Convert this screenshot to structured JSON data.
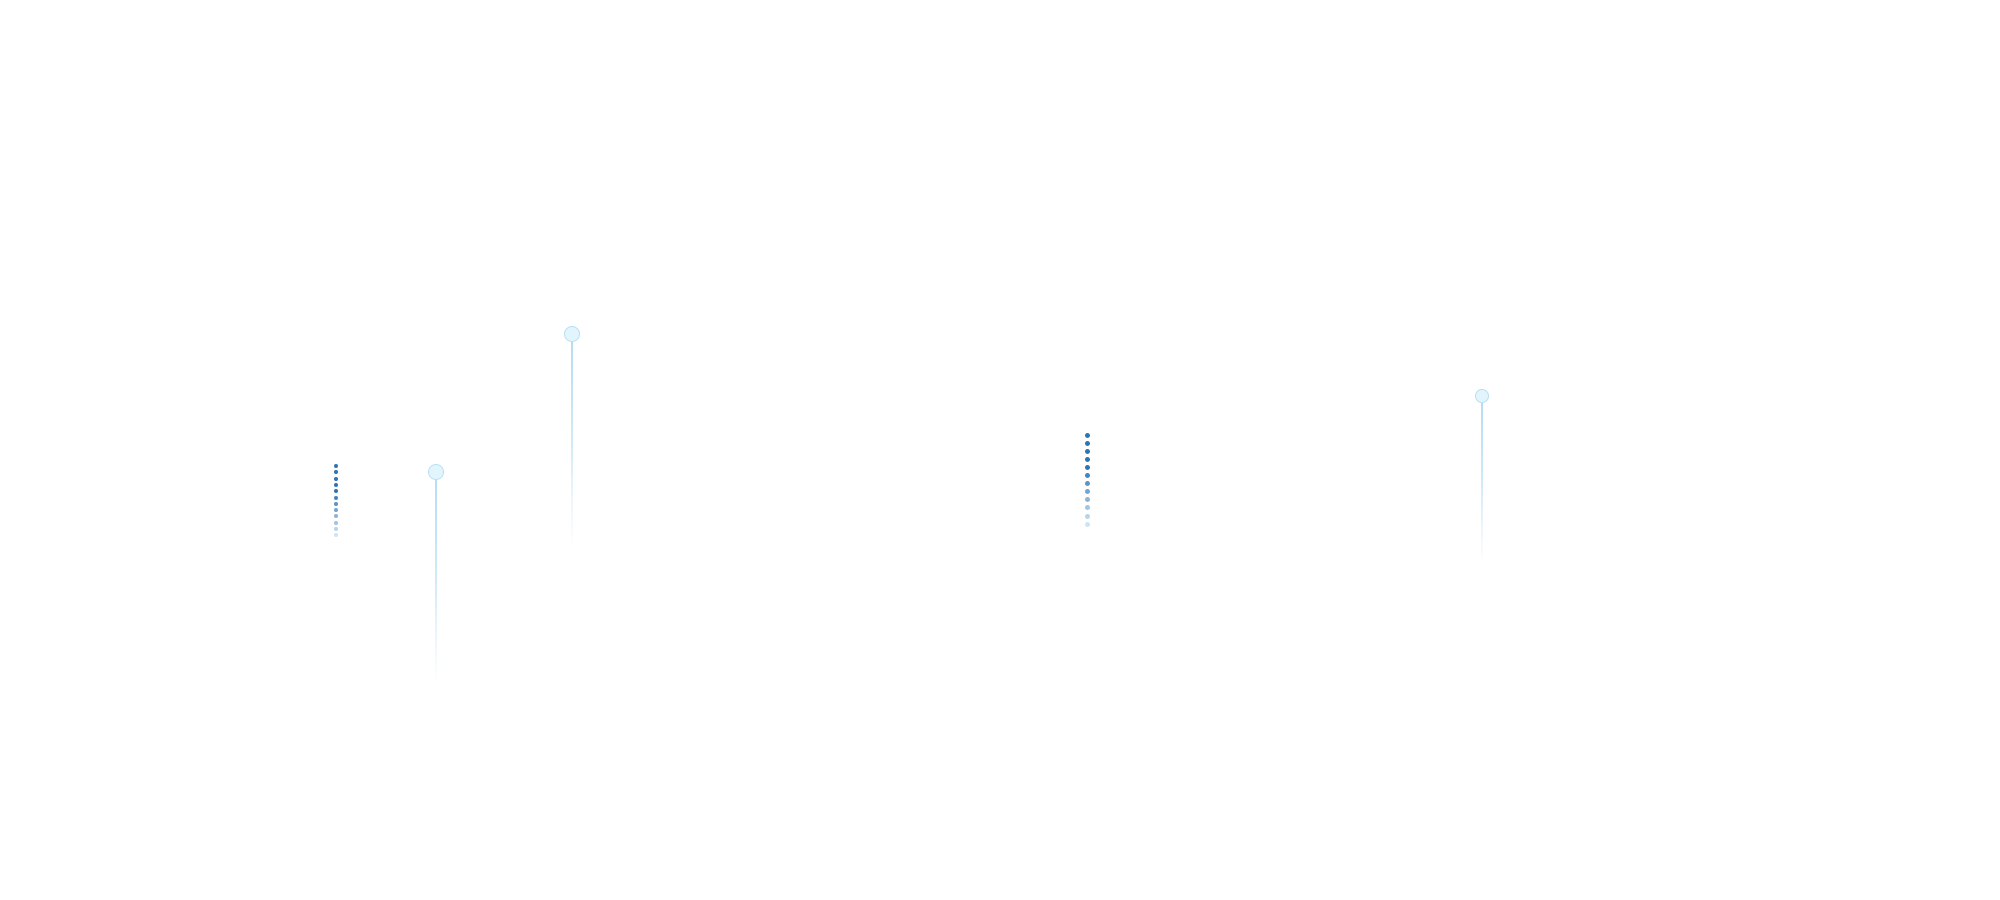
{
  "colors": {
    "background": "#ffffff",
    "dot_dark": "#2f74b5",
    "dot_light": "#e6f4fb",
    "pin_fill": "#e3f5fc",
    "pin_stroke": "#b5e0f5"
  },
  "icons": [
    "loading-dots-icon",
    "pin-marker-icon"
  ]
}
